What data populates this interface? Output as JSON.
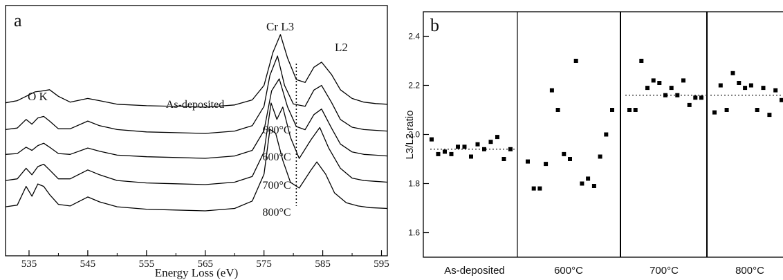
{
  "chart_data": [
    {
      "type": "line",
      "panel_label": "a",
      "xlabel": "Energy Loss (eV)",
      "ylabel": "",
      "xlim": [
        531,
        596
      ],
      "xticks": [
        535,
        545,
        555,
        565,
        575,
        585,
        595
      ],
      "grid": false,
      "annotations": [
        "O K",
        "Cr L3",
        "L2"
      ],
      "reference_line_x": 580.5,
      "series": [
        {
          "name": "As-deposited",
          "label": "As-deposited",
          "x": [
            531,
            533,
            534.5,
            536,
            537,
            538.5,
            540,
            542,
            545,
            547,
            550,
            555,
            560,
            565,
            570,
            573,
            575,
            576.5,
            577.8,
            579,
            580.5,
            582,
            583.5,
            584.8,
            586.5,
            588,
            590,
            592,
            594,
            596
          ],
          "y": [
            0.06,
            0.09,
            0.15,
            0.21,
            0.22,
            0.24,
            0.15,
            0.07,
            0.12,
            0.09,
            0.04,
            0.02,
            0.01,
            0.0,
            0.03,
            0.1,
            0.3,
            0.75,
            1.0,
            0.68,
            0.38,
            0.34,
            0.55,
            0.62,
            0.45,
            0.24,
            0.12,
            0.07,
            0.05,
            0.04
          ]
        },
        {
          "name": "600°C (a)",
          "label": "600°C",
          "x": [
            531,
            533,
            534.5,
            535.5,
            536.5,
            537.5,
            538.5,
            540,
            542,
            545,
            547,
            550,
            555,
            560,
            565,
            570,
            573,
            575,
            576,
            577.3,
            578.5,
            580,
            582,
            583.5,
            584.8,
            586.5,
            588,
            590,
            592,
            594,
            596
          ],
          "y": [
            0.05,
            0.07,
            0.18,
            0.12,
            0.2,
            0.22,
            0.16,
            0.06,
            0.06,
            0.16,
            0.1,
            0.05,
            0.02,
            0.01,
            0.0,
            0.03,
            0.1,
            0.35,
            0.75,
            1.0,
            0.62,
            0.38,
            0.35,
            0.56,
            0.62,
            0.4,
            0.18,
            0.08,
            0.05,
            0.04,
            0.03
          ]
        },
        {
          "name": "600°C (b)",
          "label": "600°C",
          "x": [
            531,
            533,
            534.5,
            535.5,
            536.5,
            537.5,
            538.5,
            540,
            542,
            545,
            547,
            550,
            555,
            560,
            565,
            570,
            573,
            575,
            576.3,
            577.6,
            579,
            580.5,
            582,
            583.5,
            584.8,
            586.5,
            588,
            590,
            592,
            594,
            596
          ],
          "y": [
            0.05,
            0.06,
            0.14,
            0.1,
            0.16,
            0.19,
            0.14,
            0.06,
            0.05,
            0.13,
            0.09,
            0.04,
            0.02,
            0.01,
            0.0,
            0.03,
            0.1,
            0.35,
            0.85,
            1.0,
            0.65,
            0.4,
            0.36,
            0.55,
            0.62,
            0.38,
            0.18,
            0.08,
            0.05,
            0.04,
            0.03
          ]
        },
        {
          "name": "700°C",
          "label": "700°C",
          "x": [
            531,
            533,
            534.5,
            535.5,
            536.5,
            537.5,
            538.5,
            540,
            542,
            545,
            547,
            550,
            555,
            560,
            565,
            570,
            573,
            575,
            576.2,
            577.2,
            578.2,
            579.5,
            581,
            583,
            584.5,
            586,
            588,
            590,
            592,
            594,
            596
          ],
          "y": [
            0.05,
            0.07,
            0.2,
            0.12,
            0.22,
            0.25,
            0.18,
            0.07,
            0.07,
            0.18,
            0.12,
            0.05,
            0.02,
            0.01,
            0.0,
            0.03,
            0.1,
            0.4,
            1.0,
            0.8,
            0.95,
            0.58,
            0.32,
            0.55,
            0.7,
            0.45,
            0.2,
            0.08,
            0.05,
            0.04,
            0.03
          ]
        },
        {
          "name": "800°C",
          "label": "800°C",
          "x": [
            531,
            533,
            534.5,
            535.5,
            536.5,
            537.5,
            538.5,
            540,
            542,
            545,
            547,
            550,
            555,
            560,
            565,
            570,
            573,
            575,
            576,
            577,
            578.2,
            579.5,
            581,
            583,
            584,
            585.5,
            587,
            589,
            591,
            593,
            596
          ],
          "y": [
            0.05,
            0.07,
            0.3,
            0.18,
            0.33,
            0.3,
            0.2,
            0.08,
            0.06,
            0.17,
            0.11,
            0.05,
            0.02,
            0.01,
            0.0,
            0.03,
            0.12,
            0.45,
            1.0,
            0.95,
            0.62,
            0.35,
            0.28,
            0.5,
            0.6,
            0.45,
            0.22,
            0.1,
            0.06,
            0.04,
            0.03
          ]
        }
      ]
    },
    {
      "type": "scatter",
      "panel_label": "b",
      "xlabel": "",
      "ylabel": "L3/L2 ratio",
      "ylim": [
        1.5,
        2.5
      ],
      "yticks": [
        1.6,
        1.8,
        2.0,
        2.2,
        2.4
      ],
      "categories": [
        "As-deposited",
        "600°C",
        "700°C",
        "800°C"
      ],
      "grid": false,
      "series": [
        {
          "name": "As-deposited",
          "values": [
            1.98,
            1.92,
            1.93,
            1.92,
            1.95,
            1.95,
            1.91,
            1.96,
            1.94,
            1.97,
            1.99,
            1.9,
            1.94
          ],
          "mean": 1.94
        },
        {
          "name": "600°C",
          "values": [
            1.89,
            1.78,
            1.78,
            1.88,
            2.18,
            2.1,
            1.92,
            1.9,
            2.3,
            1.8,
            1.82,
            1.79,
            1.91,
            2.0,
            2.1
          ]
        },
        {
          "name": "700°C",
          "values": [
            2.1,
            2.1,
            2.3,
            2.19,
            2.22,
            2.21,
            2.16,
            2.19,
            2.16,
            2.22,
            2.12,
            2.15,
            2.15
          ],
          "mean": 2.16
        },
        {
          "name": "800°C",
          "values": [
            2.09,
            2.2,
            2.1,
            2.25,
            2.21,
            2.19,
            2.2,
            2.1,
            2.19,
            2.08,
            2.18,
            2.14
          ],
          "mean": 2.16
        }
      ]
    }
  ]
}
